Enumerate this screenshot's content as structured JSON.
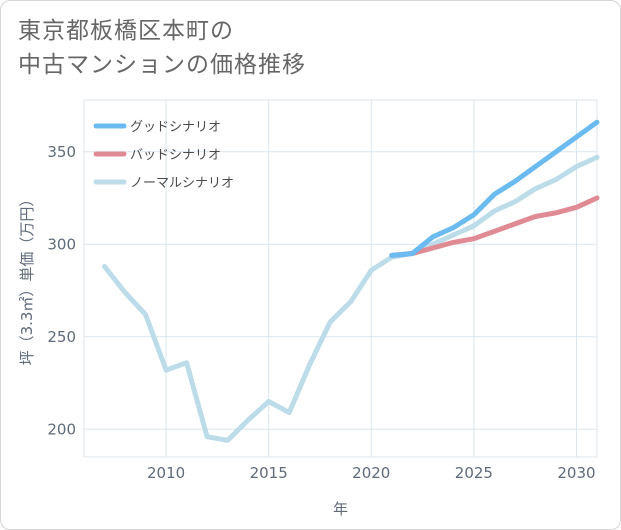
{
  "title": {
    "line1": "東京都板橋区本町の",
    "line2": "中古マンションの価格推移"
  },
  "chart_data": {
    "type": "line",
    "title": "東京都板橋区本町の中古マンションの価格推移",
    "xlabel": "年",
    "ylabel": "坪（3.3㎡）単価（万円）",
    "xlim": [
      2006,
      2031
    ],
    "ylim": [
      185,
      378
    ],
    "xticks": [
      2010,
      2015,
      2020,
      2025,
      2030
    ],
    "yticks": [
      200,
      250,
      300,
      350
    ],
    "grid": true,
    "legend_position": "top-left",
    "series": [
      {
        "name": "グッドシナリオ",
        "color": "#6bbaf0",
        "x": [
          2021,
          2022,
          2023,
          2024,
          2025,
          2026,
          2027,
          2028,
          2029,
          2030,
          2031
        ],
        "y": [
          294,
          295,
          304,
          309,
          316,
          327,
          334,
          342,
          350,
          358,
          366
        ]
      },
      {
        "name": "バッドシナリオ",
        "color": "#e08a94",
        "x": [
          2021,
          2022,
          2023,
          2024,
          2025,
          2026,
          2027,
          2028,
          2029,
          2030,
          2031
        ],
        "y": [
          294,
          295,
          298,
          301,
          303,
          307,
          311,
          315,
          317,
          320,
          325
        ]
      },
      {
        "name": "ノーマルシナリオ",
        "color": "#bcdcea",
        "x": [
          2007,
          2008,
          2009,
          2010,
          2011,
          2012,
          2013,
          2014,
          2015,
          2016,
          2017,
          2018,
          2019,
          2020,
          2021,
          2022,
          2023,
          2024,
          2025,
          2026,
          2027,
          2028,
          2029,
          2030,
          2031
        ],
        "y": [
          288,
          274,
          262,
          232,
          236,
          196,
          194,
          205,
          215,
          209,
          235,
          258,
          269,
          286,
          293,
          295,
          300,
          305,
          310,
          318,
          323,
          330,
          335,
          342,
          347
        ]
      }
    ]
  }
}
